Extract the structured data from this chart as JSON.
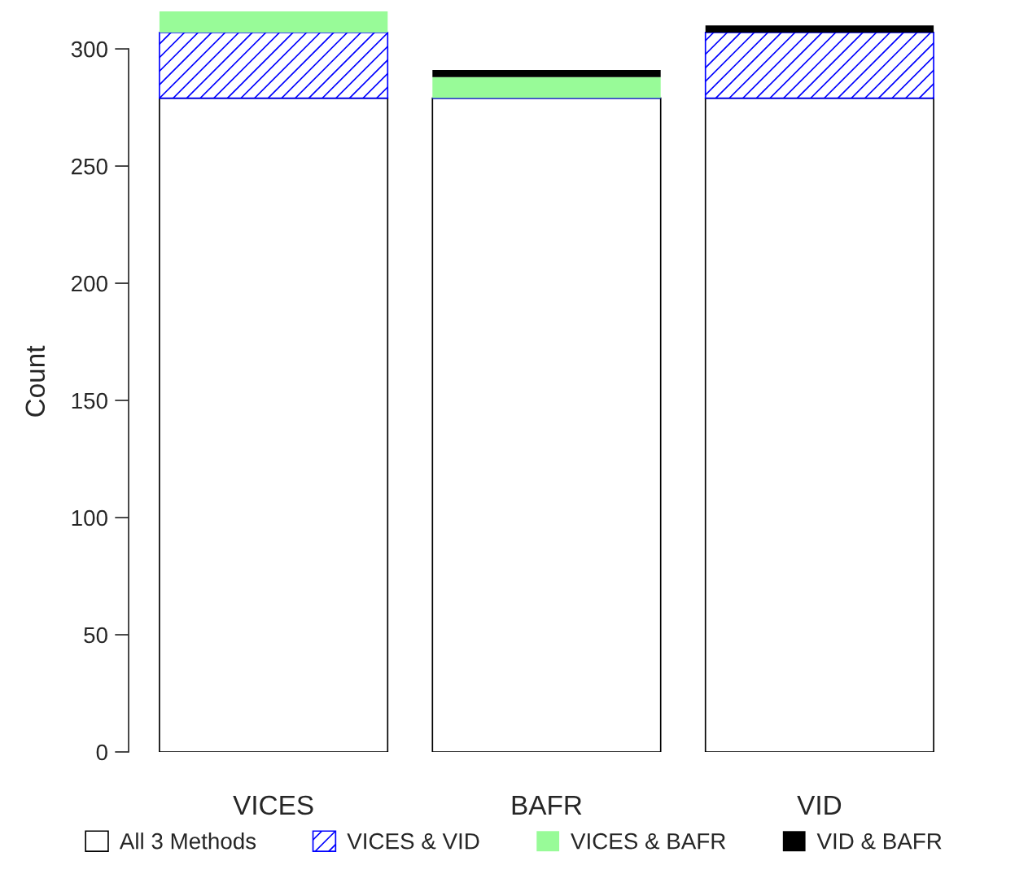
{
  "chart_data": {
    "type": "bar",
    "stacked": true,
    "ylabel": "Count",
    "categories": [
      "VICES",
      "BAFR",
      "VID"
    ],
    "series": [
      {
        "name": "All 3 Methods",
        "color": "#ffffff",
        "values": [
          279,
          279,
          279
        ]
      },
      {
        "name": "VICES & VID",
        "color": "#0000ff",
        "values": [
          28,
          0,
          28
        ]
      },
      {
        "name": "VICES & BAFR",
        "color": "#98fb98",
        "values": [
          9,
          9,
          0
        ]
      },
      {
        "name": "VID & BAFR",
        "color": "#000000",
        "values": [
          0,
          3,
          3
        ]
      }
    ],
    "ylim": [
      0,
      316
    ],
    "yticks": [
      0,
      50,
      100,
      150,
      200,
      250,
      300
    ],
    "grid": false,
    "legend": "bottom"
  }
}
